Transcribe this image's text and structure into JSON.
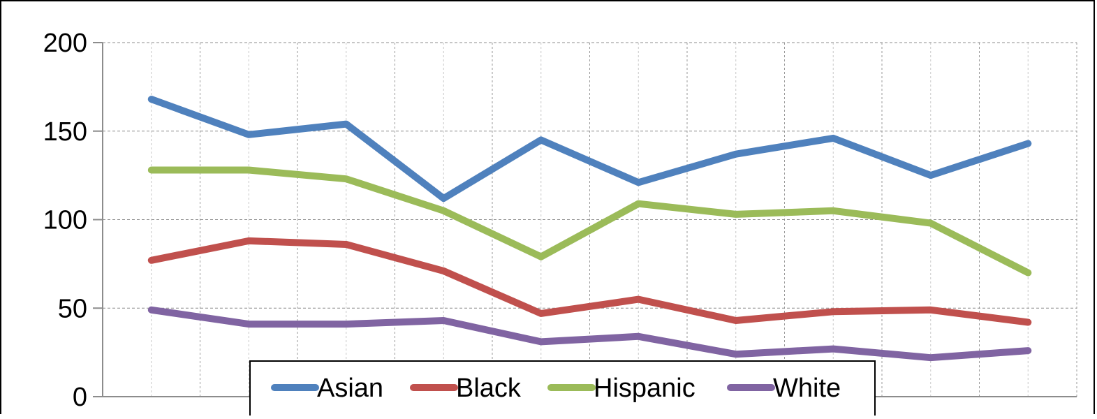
{
  "chart_data": {
    "type": "line",
    "title": "",
    "xlabel": "",
    "ylabel": "",
    "x": [
      "",
      "",
      "",
      "",
      "",
      "",
      "",
      "",
      "",
      ""
    ],
    "ylim": [
      0,
      200
    ],
    "yticks": [
      "0",
      "50",
      "100",
      "150",
      "200"
    ],
    "grid": "dashed-both",
    "legend_position": "bottom-center",
    "series": [
      {
        "name": "Asian",
        "color": "#4F81BD",
        "values": [
          168,
          148,
          154,
          112,
          145,
          121,
          137,
          146,
          125,
          143
        ]
      },
      {
        "name": "Black",
        "color": "#C0504D",
        "values": [
          77,
          88,
          86,
          71,
          47,
          55,
          43,
          48,
          49,
          42
        ]
      },
      {
        "name": "Hispanic",
        "color": "#9BBB59",
        "values": [
          128,
          128,
          123,
          105,
          79,
          109,
          103,
          105,
          98,
          70
        ]
      },
      {
        "name": "White",
        "color": "#8064A2",
        "values": [
          49,
          41,
          41,
          43,
          31,
          34,
          24,
          27,
          22,
          26
        ]
      }
    ]
  }
}
